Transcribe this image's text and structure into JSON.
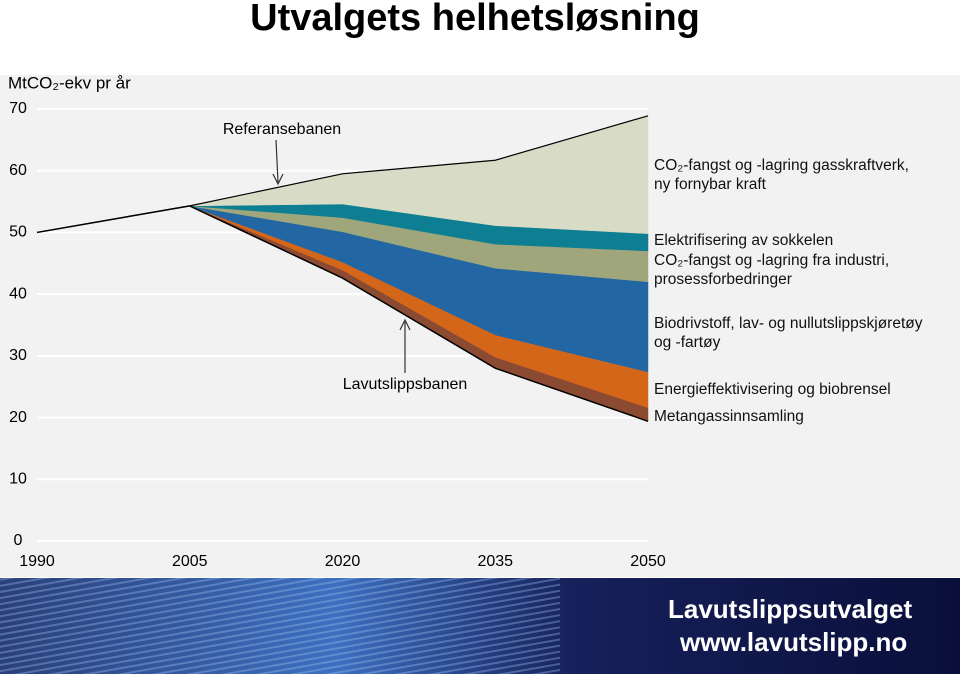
{
  "chart_data": {
    "type": "stacked-area",
    "title": "Utvalgets helhetsløsning",
    "ylabel": "MtCO₂-ekv pr år",
    "x": [
      1990,
      2005,
      2020,
      2035,
      2050
    ],
    "xlim": [
      1990,
      2050
    ],
    "xticks": [
      1990,
      2005,
      2020,
      2035,
      2050
    ],
    "ylim": [
      0,
      70
    ],
    "yticks": [
      0,
      10,
      20,
      30,
      40,
      50,
      60,
      70
    ],
    "grid": true,
    "baseline": {
      "label": "Lavutslippsbanen",
      "color": "#000000",
      "values": [
        50,
        54.3,
        42.6,
        28.0,
        19.4
      ]
    },
    "top_label": "Referansebanen",
    "series": [
      {
        "name": "Metangassinnsamling",
        "color": "#8b4a32",
        "values": [
          null,
          0,
          1.3,
          1.8,
          2.2
        ]
      },
      {
        "name": "Energieffektivisering og biobrensel",
        "color": "#d4661a",
        "values": [
          null,
          0,
          1.3,
          3.6,
          5.8
        ]
      },
      {
        "name": "Biodrivstoff, lav- og nullutslippskjøretøy\nog -fartøy",
        "color": "#2266a4",
        "values": [
          null,
          0,
          4.9,
          10.8,
          14.6
        ]
      },
      {
        "name": "CO₂-fangst og -lagring fra industri,\nprosessforbedringer",
        "color": "#9fa67c",
        "values": [
          null,
          0,
          2.3,
          3.9,
          5.0
        ]
      },
      {
        "name": "Elektrifisering av sokkelen",
        "color": "#0e7f93",
        "values": [
          null,
          0,
          2.2,
          3.0,
          2.8
        ]
      },
      {
        "name": "CO₂-fangst og -lagring gasskraftverk,\nny fornybar kraft",
        "color": "#d8dcc6",
        "values": [
          null,
          0,
          4.9,
          10.6,
          19.1
        ]
      }
    ]
  },
  "footer": {
    "title": "Lavutslippsutvalget",
    "url": "www.lavutslipp.no"
  }
}
